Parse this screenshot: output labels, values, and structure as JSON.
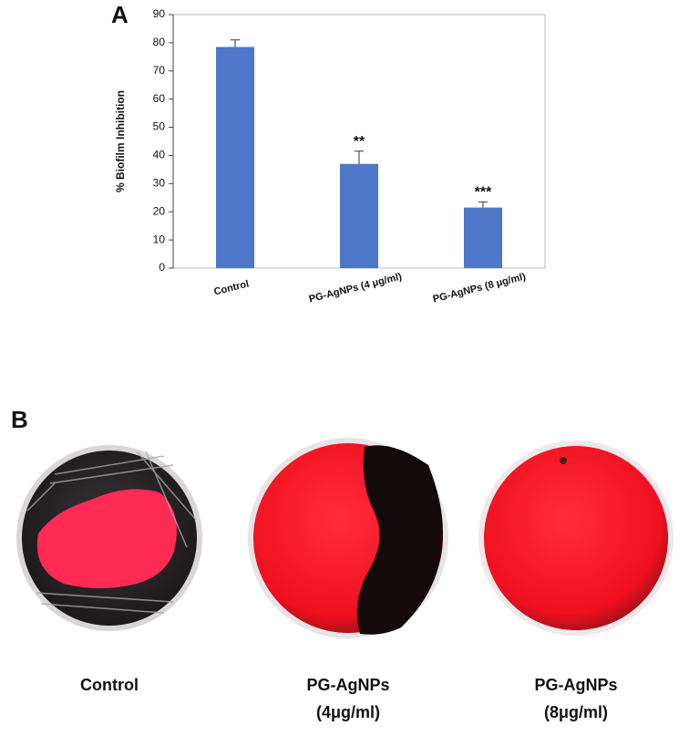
{
  "chart_data": {
    "type": "bar",
    "panel_label": "A",
    "y_label": "% Biofilm Inhibition",
    "categories": [
      "Control",
      "PG-AgNPs (4 μg/ml)",
      "PG-AgNPs (8 μg/ml)"
    ],
    "values": [
      78.5,
      37,
      21.5
    ],
    "errors": [
      2.5,
      4.5,
      2
    ],
    "annotations": [
      null,
      "**",
      "***"
    ],
    "color": "#4f77c9",
    "ylim": [
      0,
      90
    ],
    "yticks": [
      0,
      10,
      20,
      30,
      40,
      50,
      60,
      70,
      80,
      90
    ],
    "grid": false
  },
  "panel_b": {
    "panel_label": "B",
    "plates": [
      {
        "label": [
          "Control"
        ]
      },
      {
        "label": [
          "PG-AgNPs",
          "(4μg/ml)"
        ]
      },
      {
        "label": [
          "PG-AgNPs",
          "(8μg/ml)"
        ]
      }
    ]
  }
}
